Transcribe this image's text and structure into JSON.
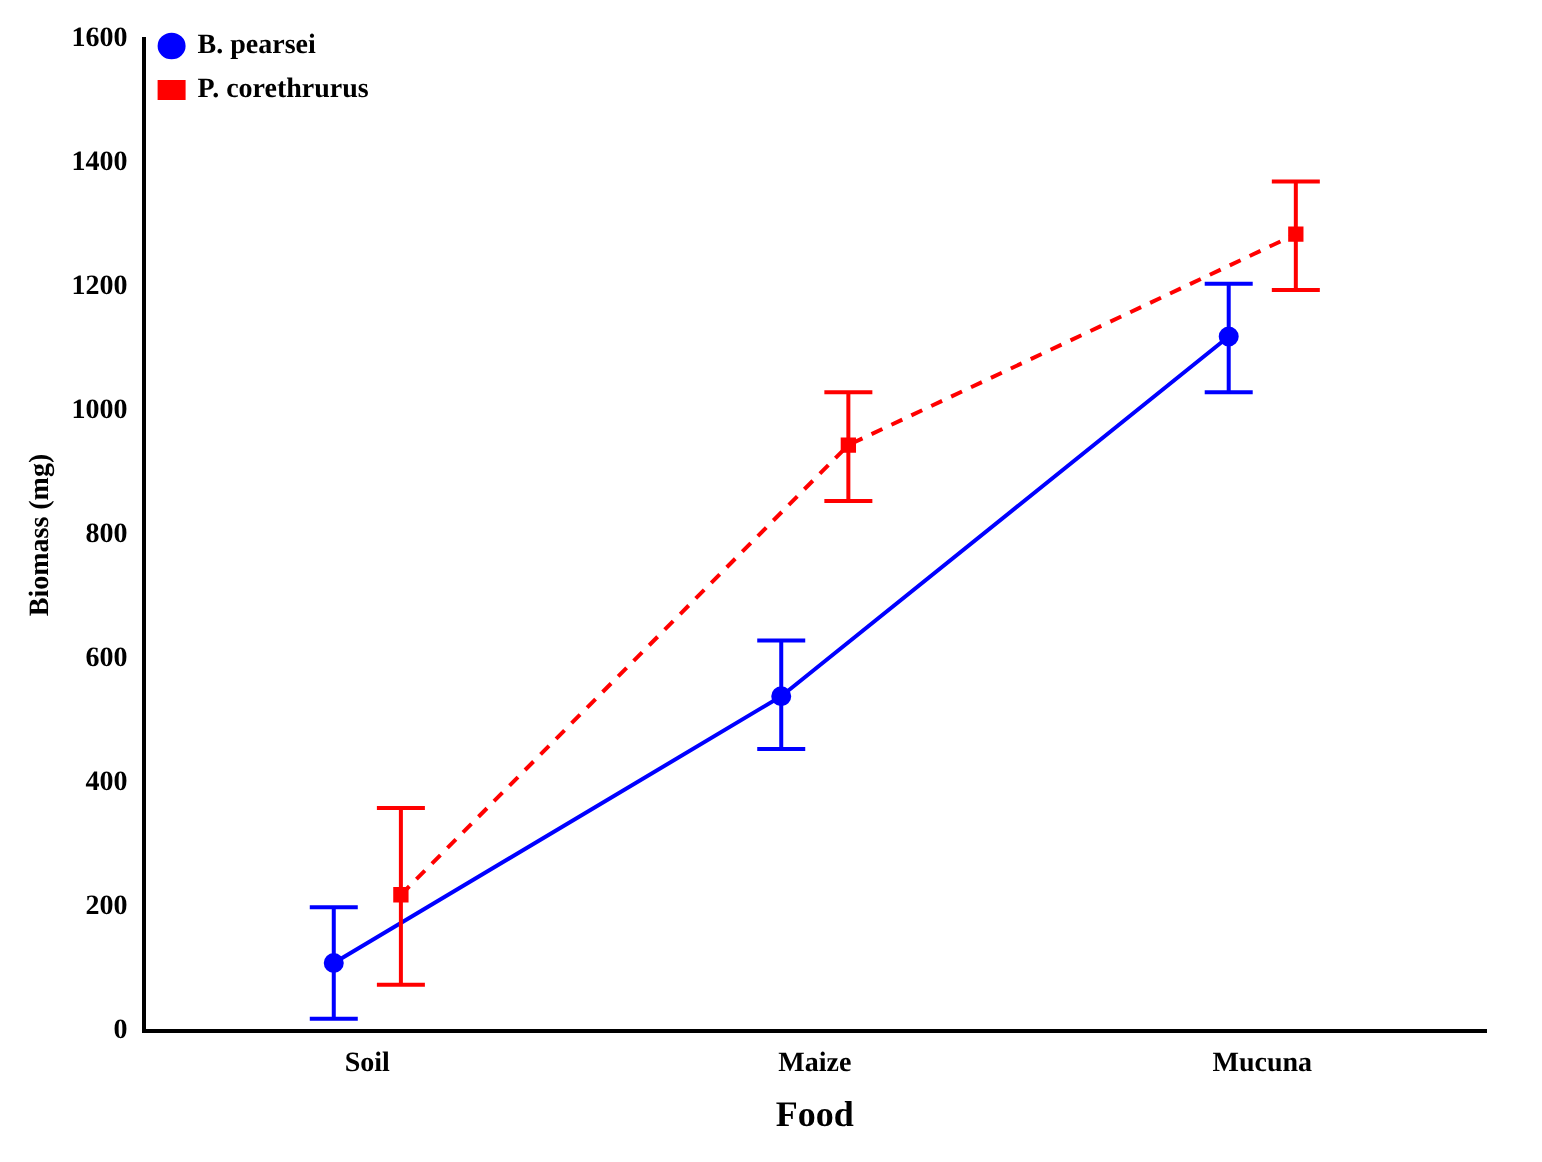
{
  "chart_data": {
    "type": "line",
    "xlabel": "Food",
    "ylabel": "Biomass (mg)",
    "categories": [
      "Soil",
      "Maize",
      "Mucuna"
    ],
    "ylim": [
      0,
      1600
    ],
    "yticks": [
      0,
      200,
      400,
      600,
      800,
      1000,
      1200,
      1400,
      1600
    ],
    "grid": false,
    "legend": "top left",
    "series": [
      {
        "name": "B. pearsei",
        "color": "#0000ff",
        "values": [
          110,
          540,
          1120
        ],
        "errors": [
          [
            20,
            200
          ],
          [
            455,
            630
          ],
          [
            1030,
            1205
          ]
        ],
        "marker": "circle",
        "line_style": "solid"
      },
      {
        "name": "P. corethrurus",
        "color": "#ff0000",
        "values": [
          220,
          945,
          1285
        ],
        "errors": [
          [
            75,
            360
          ],
          [
            855,
            1030
          ],
          [
            1195,
            1370
          ]
        ],
        "marker": "square",
        "line_style": "dashed"
      }
    ]
  }
}
